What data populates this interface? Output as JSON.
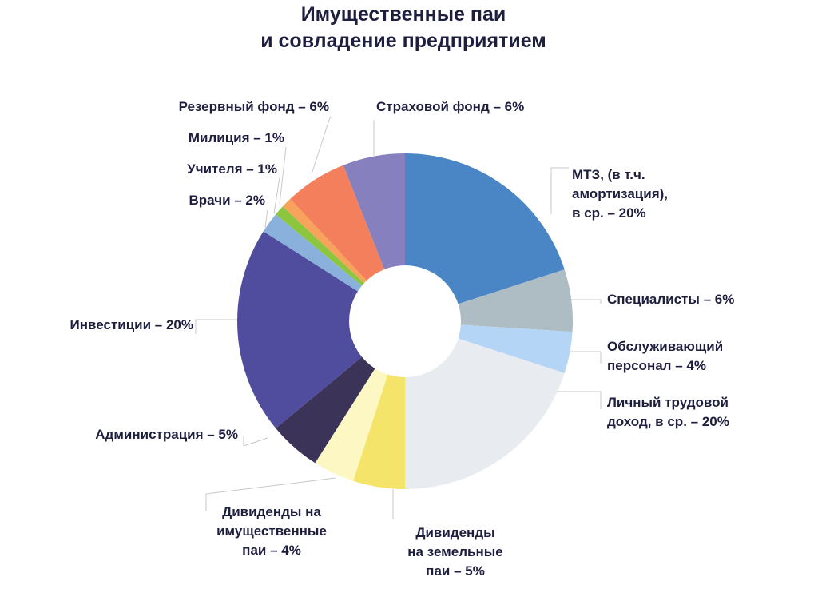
{
  "title": [
    "Имущественные паи",
    "и совладение предприятием"
  ],
  "chart_data": {
    "type": "pie",
    "donut": true,
    "start_angle_deg": 0,
    "direction": "clockwise",
    "slices": [
      {
        "key": "mtz",
        "value": 20,
        "color": "#4a86c6",
        "label": [
          "МТЗ, (в т.ч.",
          "амортизация),",
          "в ср. – 20%"
        ]
      },
      {
        "key": "spec",
        "value": 6,
        "color": "#adbdc3",
        "label": [
          "Специалисты – 6%"
        ]
      },
      {
        "key": "obsl",
        "value": 4,
        "color": "#b5d5f7",
        "label": [
          "Обслуживающий",
          "персонал – 4%"
        ]
      },
      {
        "key": "lichny",
        "value": 20,
        "color": "#e8ecf1",
        "label": [
          "Личный трудовой",
          "доход, в ср. – 20%"
        ]
      },
      {
        "key": "div_zem",
        "value": 5,
        "color": "#f5e46a",
        "label": [
          "Дивиденды",
          "на земельные",
          "паи – 5%"
        ]
      },
      {
        "key": "div_im",
        "value": 4,
        "color": "#fdf7c4",
        "label": [
          "Дивиденды на",
          "имущественные",
          "паи – 4%"
        ]
      },
      {
        "key": "admin",
        "value": 5,
        "color": "#3b3358",
        "label": [
          "Администрация – 5%"
        ]
      },
      {
        "key": "invest",
        "value": 20,
        "color": "#504c9e",
        "label": [
          "Инвестиции – 20%"
        ]
      },
      {
        "key": "vrachi",
        "value": 2,
        "color": "#8ab0dc",
        "label": [
          "Врачи – 2%"
        ]
      },
      {
        "key": "uchitelya",
        "value": 1,
        "color": "#8cc63f",
        "label": [
          "Учителя – 1%"
        ]
      },
      {
        "key": "militsiya",
        "value": 1,
        "color": "#f7a35c",
        "label": [
          "Милиция – 1%"
        ]
      },
      {
        "key": "rezerv",
        "value": 6,
        "color": "#f47f5d",
        "label": [
          "Резервный фонд – 6%"
        ]
      },
      {
        "key": "strakh",
        "value": 6,
        "color": "#8680be",
        "label": [
          "Страховой фонд – 6%"
        ]
      }
    ]
  }
}
